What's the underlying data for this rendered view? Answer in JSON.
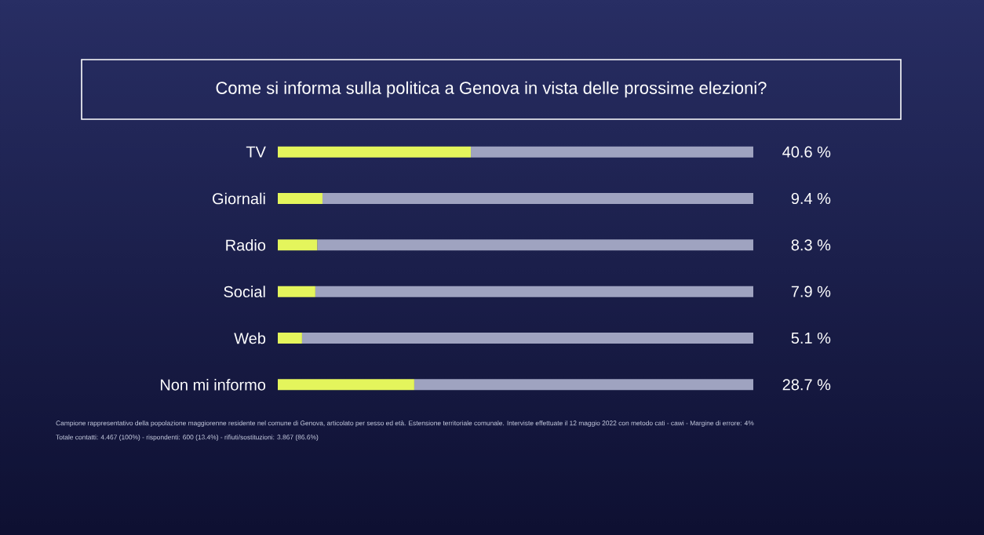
{
  "chart_data": {
    "type": "bar",
    "orientation": "horizontal",
    "stacked": true,
    "title": "Come si informa sulla politica a Genova in vista delle prossime elezioni?",
    "categories": [
      "TV",
      "Giornali",
      "Radio",
      "Social",
      "Web",
      "Non mi informo"
    ],
    "series": [
      {
        "color": "#e4f55c",
        "values": [
          40.6,
          9.4,
          8.3,
          7.9,
          5.1,
          28.7
        ],
        "value_labels": [
          "40.6 %",
          "9.4 %",
          "8.3 %",
          "7.9 %",
          "5.1 %",
          "28.7 %"
        ]
      },
      {
        "color": "#9fa3c0",
        "values": [
          59.4,
          90.6,
          91.7,
          92.1,
          94.9,
          71.3
        ]
      }
    ],
    "xlim": [
      0,
      100
    ],
    "tick_labels": "y",
    "annotations": [
      "Campione rappresentativo della popolazione maggiorenne residente nel comune di Genova, articolato per sesso ed età. Estensione territoriale comunale. Interviste effettuate il 12 maggio 2022 con metodo cati - cawi - Margine di errore: 4%",
      "Totale contatti: 4.467 (100%) - rispondenti: 600 (13.4%) - rifiuti/sostituzioni: 3.867 (86.6%)"
    ]
  }
}
